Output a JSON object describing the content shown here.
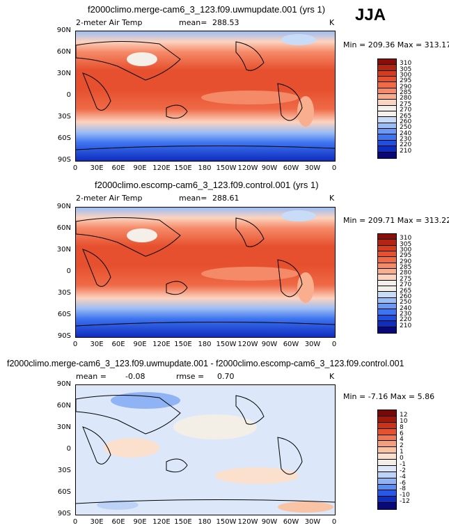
{
  "season": "JJA",
  "colors": {
    "abs_scale": [
      "#08087a",
      "#0f2dbf",
      "#1e4fe0",
      "#3d74f0",
      "#6b99f4",
      "#9bbdf5",
      "#c8dcf7",
      "#f4efe8",
      "#fcd3bf",
      "#f9ae8e",
      "#f58a68",
      "#ef6a47",
      "#e6502e",
      "#d53b1c",
      "#b42511",
      "#8a0d0a"
    ],
    "diff_scale": [
      "#08087a",
      "#0f2dbf",
      "#2a58e6",
      "#5a8cf2",
      "#8fb3f5",
      "#bcd3f7",
      "#dce8f9",
      "#f3efe7",
      "#fbe0ce",
      "#f9c3a6",
      "#f59e7b",
      "#ef7753",
      "#e3532f",
      "#cc3217",
      "#a01a0c",
      "#7a0808"
    ]
  },
  "panels": [
    {
      "title": "f2000climo.merge-cam6_3_123.f09.uwmupdate.001 (yrs 1)",
      "variable": "2-meter Air Temp",
      "mean_label": "mean=",
      "mean_value": "288.53",
      "units": "K",
      "minmax": "Min = 209.36 Max = 313.17",
      "levels": [
        "310",
        "305",
        "300",
        "295",
        "290",
        "285",
        "280",
        "275",
        "270",
        "265",
        "260",
        "250",
        "240",
        "230",
        "220",
        "210"
      ]
    },
    {
      "title": "f2000climo.escomp-cam6_3_123.f09.control.001 (yrs 1)",
      "variable": "2-meter Air Temp",
      "mean_label": "mean=",
      "mean_value": "288.61",
      "units": "K",
      "minmax": "Min = 209.71 Max = 313.22",
      "levels": [
        "310",
        "305",
        "300",
        "295",
        "290",
        "285",
        "280",
        "275",
        "270",
        "265",
        "260",
        "250",
        "240",
        "230",
        "220",
        "210"
      ]
    },
    {
      "title": "f2000climo.merge-cam6_3_123.f09.uwmupdate.001 - f2000climo.escomp-cam6_3_123.f09.control.001",
      "mean_label": "mean =",
      "mean_value": "-0.08",
      "rmse_label": "rmse =",
      "rmse_value": "0.70",
      "units": "K",
      "minmax": "Min =  -7.16 Max =    5.86",
      "levels": [
        "12",
        "10",
        "8",
        "6",
        "4",
        "2",
        "1",
        "0",
        "-1",
        "-2",
        "-4",
        "-6",
        "-8",
        "-10",
        "-12"
      ]
    }
  ],
  "lat_ticks": [
    "90N",
    "60N",
    "30N",
    "0",
    "30S",
    "60S",
    "90S"
  ],
  "lon_ticks": [
    "0",
    "30E",
    "60E",
    "90E",
    "120E",
    "150E",
    "180",
    "150W",
    "120W",
    "90W",
    "60W",
    "30W",
    "0"
  ]
}
